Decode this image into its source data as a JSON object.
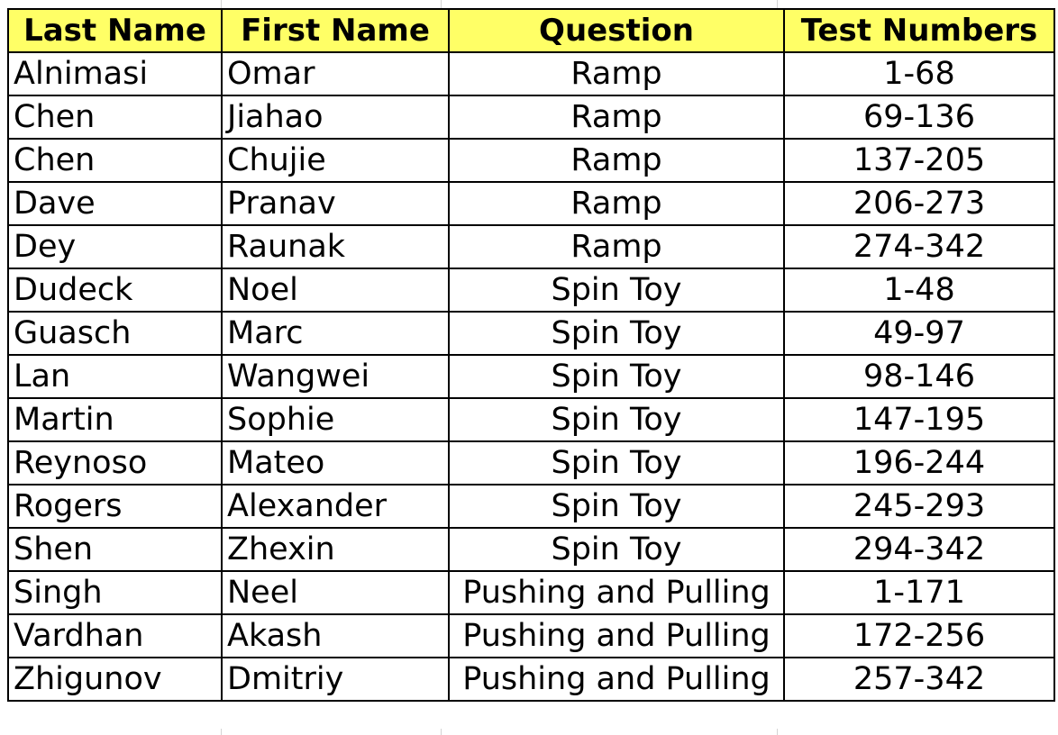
{
  "headers": {
    "last_name": "Last Name",
    "first_name": "First Name",
    "question": "Question",
    "test_numbers": "Test Numbers"
  },
  "rows": [
    {
      "last": "Alnimasi",
      "first": "Omar",
      "question": "Ramp",
      "tests": "1-68"
    },
    {
      "last": "Chen",
      "first": "Jiahao",
      "question": "Ramp",
      "tests": "69-136"
    },
    {
      "last": "Chen",
      "first": "Chujie",
      "question": "Ramp",
      "tests": "137-205"
    },
    {
      "last": "Dave",
      "first": "Pranav",
      "question": "Ramp",
      "tests": "206-273"
    },
    {
      "last": "Dey",
      "first": "Raunak",
      "question": "Ramp",
      "tests": "274-342"
    },
    {
      "last": "Dudeck",
      "first": "Noel",
      "question": "Spin Toy",
      "tests": "1-48"
    },
    {
      "last": "Guasch",
      "first": "Marc",
      "question": "Spin Toy",
      "tests": "49-97"
    },
    {
      "last": "Lan",
      "first": "Wangwei",
      "question": "Spin Toy",
      "tests": "98-146"
    },
    {
      "last": "Martin",
      "first": "Sophie",
      "question": "Spin Toy",
      "tests": "147-195"
    },
    {
      "last": "Reynoso",
      "first": "Mateo",
      "question": "Spin Toy",
      "tests": "196-244"
    },
    {
      "last": "Rogers",
      "first": "Alexander",
      "question": "Spin Toy",
      "tests": "245-293"
    },
    {
      "last": "Shen",
      "first": "Zhexin",
      "question": "Spin Toy",
      "tests": "294-342"
    },
    {
      "last": "Singh",
      "first": "Neel",
      "question": "Pushing and Pulling",
      "tests": "1-171"
    },
    {
      "last": "Vardhan",
      "first": "Akash",
      "question": "Pushing and Pulling",
      "tests": "172-256"
    },
    {
      "last": "Zhigunov",
      "first": "Dmitriy",
      "question": "Pushing and Pulling",
      "tests": "257-342"
    }
  ],
  "colors": {
    "header_fill": "#ffff66",
    "border": "#000000",
    "gridline": "#d4d4d4"
  }
}
